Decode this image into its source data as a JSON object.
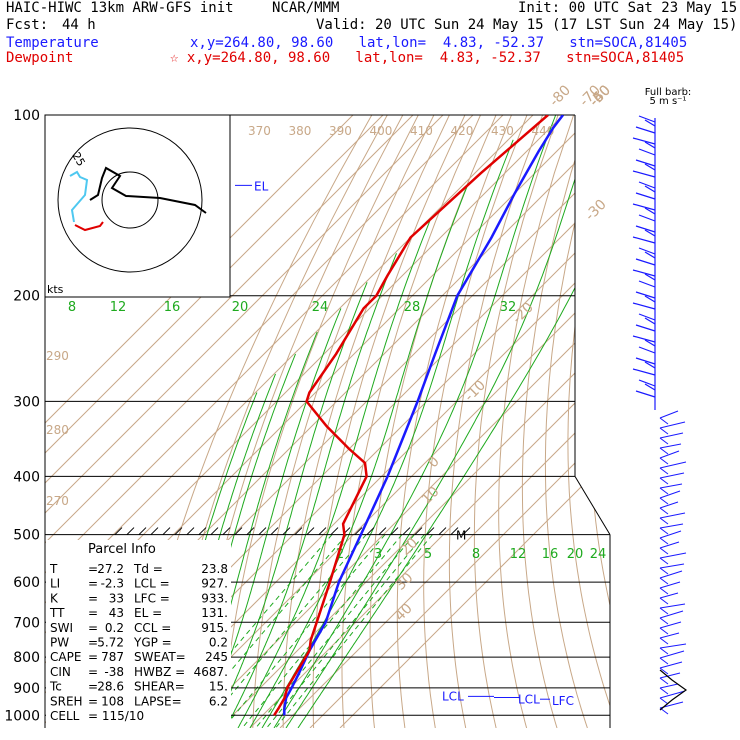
{
  "header": {
    "model": "HAIC-HIWC 13km ARW-GFS init",
    "org": "NCAR/MMM",
    "init": "Init: 00 UTC Sat 23 May 15",
    "fcst_label": "Fcst:",
    "fcst_value": "44 h",
    "valid": "Valid: 20 UTC Sun 24 May 15 (17 LST Sun 24 May 15)",
    "temp_label": "Temperature",
    "temp_info": "x,y=264.80, 98.60   lat,lon=  4.83, -52.37   stn=SOCA,81405",
    "dew_label": "Dewpoint",
    "dew_info": "☆ x,y=264.80, 98.60   lat,lon=  4.83, -52.37   stn=SOCA,81405"
  },
  "colors": {
    "temperature": "#1a1aff",
    "dewpoint": "#e00000",
    "isotherm_dryadiabat": "#c8a888",
    "moist_adiabat_mixing": "#1faa1f"
  },
  "barb_legend": {
    "line1": "Full barb:",
    "line2": "5 m s⁻¹"
  },
  "parcel_info": {
    "title": "Parcel Info",
    "rows": [
      {
        "k1": "T",
        "v1": "27.2",
        "k2": "Td",
        "v2": "23.8"
      },
      {
        "k1": "LI",
        "v1": "-2.3",
        "k2": "LCL",
        "v2": "927."
      },
      {
        "k1": "K",
        "v1": "33",
        "k2": "LFC",
        "v2": "933."
      },
      {
        "k1": "TT",
        "v1": "43",
        "k2": "EL",
        "v2": "131."
      },
      {
        "k1": "SWI",
        "v1": "0.2",
        "k2": "CCL",
        "v2": "915."
      },
      {
        "k1": "PW",
        "v1": "5.72",
        "k2": "YGP",
        "v2": "0.2"
      },
      {
        "k1": "CAPE",
        "v1": "787",
        "k2": "SWEAT",
        "v2": "245"
      },
      {
        "k1": "CIN",
        "v1": "-38",
        "k2": "HWBZ",
        "v2": "4687."
      },
      {
        "k1": "Tc",
        "v1": "28.6",
        "k2": "SHEAR",
        "v2": "15."
      },
      {
        "k1": "SREH",
        "v1": "108",
        "k2": "LAPSE",
        "v2": "6.2"
      },
      {
        "k1": "CELL",
        "v1": "115/10",
        "k2": "",
        "v2": ""
      }
    ]
  },
  "chart_data": {
    "type": "line",
    "title": "",
    "ylabel": "",
    "xlabel": "",
    "y_scale": "log-pressure",
    "pressure_levels": [
      100,
      200,
      300,
      400,
      500,
      600,
      700,
      800,
      900,
      1000
    ],
    "isotherm_labels": [
      "-80",
      "-70",
      "-60",
      "-50",
      "-40",
      "-30",
      "-20",
      "-10",
      "0",
      "10",
      "20",
      "30",
      "40"
    ],
    "theta_labels": [
      "370",
      "380",
      "390",
      "400",
      "410",
      "420",
      "430",
      "440"
    ],
    "theta_left_labels": [
      "290",
      "280",
      "270"
    ],
    "moist_labels": [
      "8",
      "12",
      "16",
      "20",
      "24",
      "28",
      "32"
    ],
    "mixing_ratio_labels": [
      "2",
      "3",
      "5",
      "8",
      "12",
      "16",
      "20",
      "24"
    ],
    "series": [
      {
        "name": "Temperature",
        "p": [
          100,
          105,
          115,
          135,
          160,
          200,
          250,
          300,
          400,
          500,
          600,
          700,
          780,
          850,
          900,
          935,
          975,
          1000
        ],
        "t": [
          -80,
          -79,
          -76,
          -70,
          -63,
          -55,
          -43,
          -33,
          -18,
          -7.5,
          1,
          10,
          14,
          18,
          20.5,
          22,
          25,
          27.2
        ]
      },
      {
        "name": "Dewpoint",
        "p": [
          100,
          125,
          160,
          185,
          200,
          210,
          250,
          290,
          300,
          330,
          360,
          380,
          400,
          480,
          500,
          600,
          700,
          750,
          780,
          850,
          900,
          935,
          975,
          1000
        ],
        "td": [
          -85,
          -88,
          -90,
          -85,
          -82,
          -82,
          -76,
          -72,
          -70,
          -55,
          -40,
          -30,
          -25,
          -17,
          -13,
          -2,
          7,
          11,
          14,
          17,
          19,
          21.5,
          23,
          23.8
        ]
      }
    ],
    "level_markers": [
      {
        "label": "EL",
        "p": 131
      },
      {
        "label": "M",
        "p": 500
      },
      {
        "label": "LCL",
        "p": 930
      },
      {
        "label": "LCL",
        "p": 927
      },
      {
        "label": "LFC",
        "p": 933
      }
    ],
    "hodograph": {
      "speed_ring_label": "25",
      "unit_label": "kts"
    },
    "wind_barbs_note": "column of wind barbs at right edge, 100-1000 hPa"
  }
}
